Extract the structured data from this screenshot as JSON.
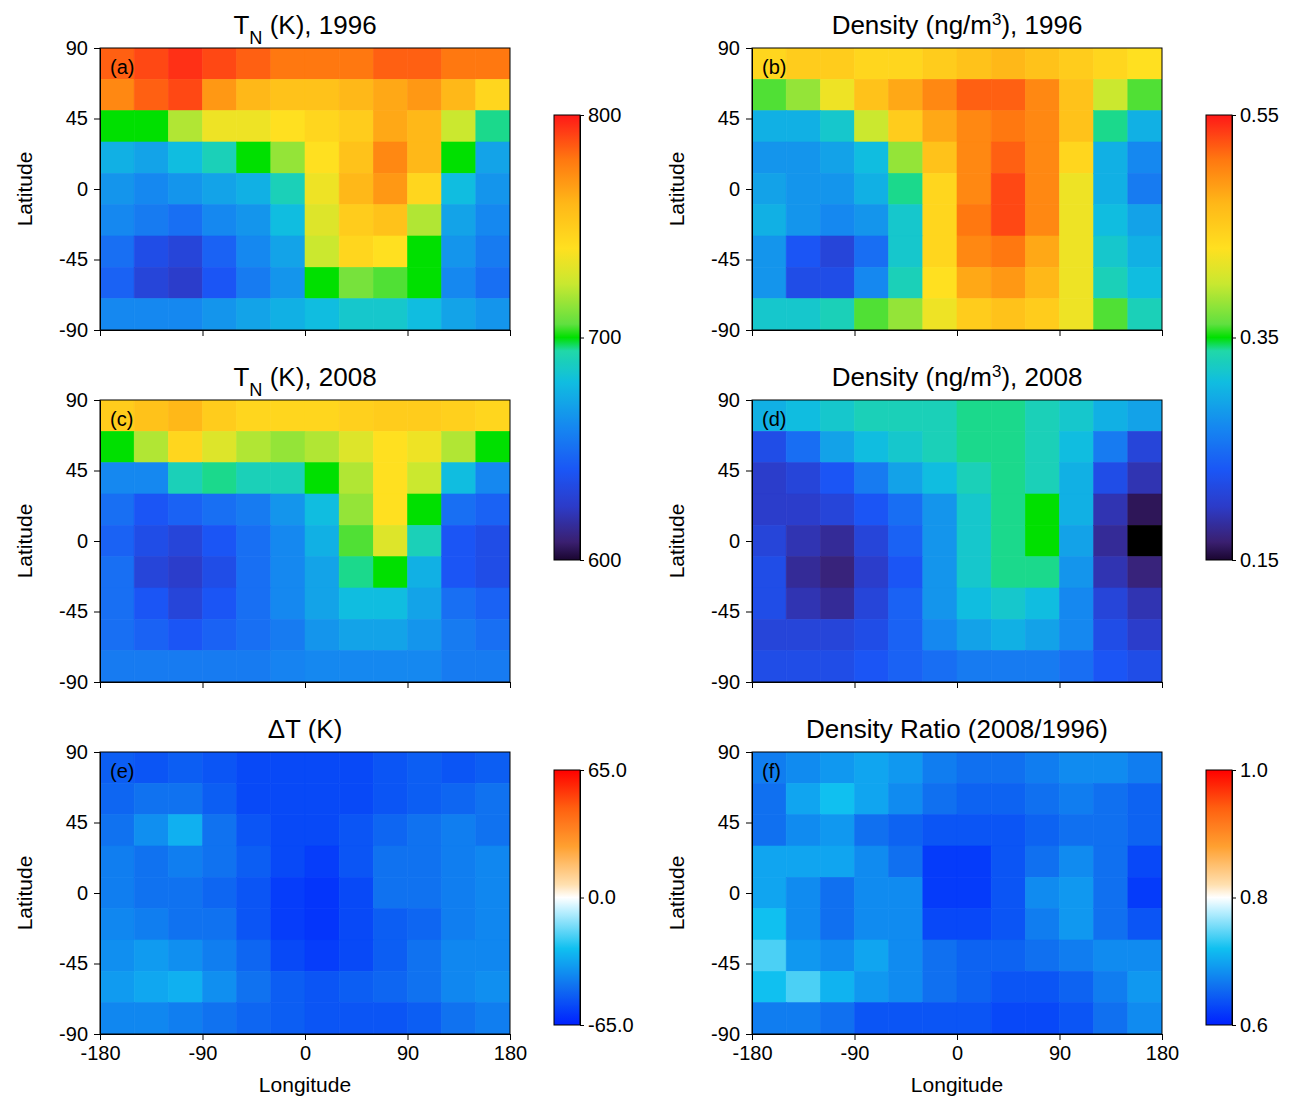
{
  "chart_data": [
    {
      "type": "heatmap",
      "title": "TN (K), 1996",
      "annotation": "(a)",
      "ylabel": "Latitude",
      "color": "rainbow",
      "tick_labels": "y",
      "x": [
        -165,
        -135,
        -105,
        -75,
        -45,
        -15,
        15,
        45,
        75,
        105,
        135,
        165
      ],
      "y": [
        80,
        60,
        40,
        20,
        0,
        -20,
        -40,
        -60,
        -80
      ],
      "xlim": [
        -180,
        180
      ],
      "xticks": [
        -180,
        -90,
        0,
        90,
        180
      ],
      "ylim": [
        -90,
        90
      ],
      "yticks": [
        -90,
        -45,
        0,
        45,
        90
      ],
      "colorbar": {
        "range": [
          600,
          800
        ],
        "ticks": [
          600,
          700,
          800
        ]
      },
      "z": [
        [
          785,
          790,
          795,
          790,
          785,
          780,
          780,
          780,
          785,
          785,
          780,
          780
        ],
        [
          775,
          785,
          790,
          770,
          760,
          755,
          755,
          760,
          765,
          770,
          760,
          745
        ],
        [
          700,
          700,
          720,
          735,
          735,
          740,
          745,
          750,
          765,
          760,
          725,
          695
        ],
        [
          675,
          670,
          680,
          690,
          700,
          715,
          740,
          755,
          775,
          760,
          700,
          670
        ],
        [
          665,
          660,
          665,
          670,
          675,
          690,
          735,
          760,
          770,
          745,
          680,
          665
        ],
        [
          660,
          655,
          650,
          660,
          665,
          680,
          730,
          750,
          755,
          720,
          670,
          660
        ],
        [
          650,
          635,
          630,
          645,
          660,
          670,
          725,
          745,
          740,
          700,
          665,
          655
        ],
        [
          645,
          630,
          625,
          640,
          655,
          665,
          700,
          710,
          705,
          700,
          660,
          650
        ],
        [
          660,
          660,
          660,
          665,
          670,
          675,
          680,
          685,
          685,
          680,
          670,
          665
        ]
      ]
    },
    {
      "type": "heatmap",
      "title": "Density (ng/m3), 1996",
      "annotation": "(b)",
      "ylabel": "Latitude",
      "color": "rainbow",
      "tick_labels": "y",
      "x": [
        -165,
        -135,
        -105,
        -75,
        -45,
        -15,
        15,
        45,
        75,
        105,
        135,
        165
      ],
      "y": [
        80,
        60,
        40,
        20,
        0,
        -20,
        -40,
        -60,
        -80
      ],
      "xlim": [
        -180,
        180
      ],
      "xticks": [
        -180,
        -90,
        0,
        90,
        180
      ],
      "ylim": [
        -90,
        90
      ],
      "yticks": [
        -90,
        -45,
        0,
        45,
        90
      ],
      "colorbar": {
        "range": [
          0.15,
          0.55
        ],
        "ticks": [
          0.15,
          0.35,
          0.55
        ]
      },
      "z": [
        [
          0.44,
          0.45,
          0.45,
          0.44,
          0.44,
          0.45,
          0.46,
          0.47,
          0.46,
          0.45,
          0.44,
          0.43
        ],
        [
          0.36,
          0.38,
          0.42,
          0.46,
          0.48,
          0.5,
          0.52,
          0.52,
          0.5,
          0.46,
          0.4,
          0.36
        ],
        [
          0.3,
          0.3,
          0.32,
          0.4,
          0.45,
          0.48,
          0.5,
          0.51,
          0.5,
          0.46,
          0.34,
          0.3
        ],
        [
          0.28,
          0.28,
          0.29,
          0.31,
          0.38,
          0.46,
          0.5,
          0.52,
          0.5,
          0.44,
          0.3,
          0.27
        ],
        [
          0.29,
          0.28,
          0.28,
          0.3,
          0.34,
          0.44,
          0.5,
          0.53,
          0.5,
          0.42,
          0.3,
          0.26
        ],
        [
          0.3,
          0.28,
          0.27,
          0.28,
          0.32,
          0.44,
          0.51,
          0.53,
          0.5,
          0.42,
          0.31,
          0.29
        ],
        [
          0.28,
          0.23,
          0.21,
          0.25,
          0.32,
          0.44,
          0.5,
          0.51,
          0.48,
          0.42,
          0.32,
          0.3
        ],
        [
          0.28,
          0.22,
          0.22,
          0.27,
          0.33,
          0.43,
          0.48,
          0.49,
          0.47,
          0.42,
          0.33,
          0.31
        ],
        [
          0.32,
          0.32,
          0.33,
          0.36,
          0.38,
          0.42,
          0.45,
          0.46,
          0.45,
          0.42,
          0.36,
          0.33
        ]
      ]
    },
    {
      "type": "heatmap",
      "title": "TN (K), 2008",
      "annotation": "(c)",
      "ylabel": "Latitude",
      "color": "rainbow",
      "tick_labels": "y",
      "x": [
        -165,
        -135,
        -105,
        -75,
        -45,
        -15,
        15,
        45,
        75,
        105,
        135,
        165
      ],
      "y": [
        80,
        60,
        40,
        20,
        0,
        -20,
        -40,
        -60,
        -80
      ],
      "xlim": [
        -180,
        180
      ],
      "xticks": [
        -180,
        -90,
        0,
        90,
        180
      ],
      "ylim": [
        -90,
        90
      ],
      "yticks": [
        -90,
        -45,
        0,
        45,
        90
      ],
      "colorbar": {
        "range": [
          600,
          800
        ]
      },
      "z": [
        [
          750,
          755,
          760,
          750,
          745,
          745,
          745,
          748,
          750,
          750,
          748,
          745
        ],
        [
          700,
          720,
          745,
          730,
          720,
          715,
          720,
          730,
          740,
          735,
          720,
          700
        ],
        [
          660,
          660,
          690,
          695,
          690,
          690,
          700,
          720,
          740,
          725,
          680,
          660
        ],
        [
          650,
          640,
          645,
          650,
          655,
          665,
          680,
          715,
          740,
          700,
          650,
          645
        ],
        [
          645,
          635,
          630,
          640,
          650,
          660,
          675,
          705,
          730,
          690,
          640,
          635
        ],
        [
          650,
          630,
          625,
          635,
          650,
          660,
          670,
          695,
          700,
          675,
          640,
          635
        ],
        [
          650,
          640,
          630,
          640,
          650,
          660,
          670,
          680,
          680,
          670,
          650,
          645
        ],
        [
          650,
          645,
          640,
          645,
          650,
          655,
          665,
          670,
          670,
          665,
          655,
          650
        ],
        [
          655,
          655,
          655,
          655,
          655,
          658,
          660,
          660,
          660,
          660,
          655,
          655
        ]
      ]
    },
    {
      "type": "heatmap",
      "title": "Density (ng/m3), 2008",
      "annotation": "(d)",
      "ylabel": "Latitude",
      "color": "rainbow",
      "tick_labels": "y",
      "x": [
        -165,
        -135,
        -105,
        -75,
        -45,
        -15,
        15,
        45,
        75,
        105,
        135,
        165
      ],
      "y": [
        80,
        60,
        40,
        20,
        0,
        -20,
        -40,
        -60,
        -80
      ],
      "xlim": [
        -180,
        180
      ],
      "xticks": [
        -180,
        -90,
        0,
        90,
        180
      ],
      "ylim": [
        -90,
        90
      ],
      "yticks": [
        -90,
        -45,
        0,
        45,
        90
      ],
      "colorbar": {
        "range": [
          0.15,
          0.55
        ]
      },
      "z": [
        [
          0.3,
          0.31,
          0.32,
          0.33,
          0.33,
          0.33,
          0.34,
          0.34,
          0.33,
          0.32,
          0.3,
          0.29
        ],
        [
          0.22,
          0.25,
          0.29,
          0.31,
          0.32,
          0.33,
          0.34,
          0.34,
          0.33,
          0.31,
          0.26,
          0.21
        ],
        [
          0.2,
          0.21,
          0.23,
          0.26,
          0.29,
          0.31,
          0.33,
          0.34,
          0.33,
          0.3,
          0.22,
          0.19
        ],
        [
          0.2,
          0.2,
          0.21,
          0.23,
          0.25,
          0.28,
          0.32,
          0.34,
          0.35,
          0.3,
          0.19,
          0.16
        ],
        [
          0.21,
          0.19,
          0.18,
          0.21,
          0.24,
          0.28,
          0.32,
          0.34,
          0.35,
          0.29,
          0.18,
          0.14
        ],
        [
          0.22,
          0.18,
          0.17,
          0.2,
          0.23,
          0.28,
          0.32,
          0.34,
          0.34,
          0.28,
          0.19,
          0.17
        ],
        [
          0.22,
          0.19,
          0.18,
          0.21,
          0.24,
          0.28,
          0.31,
          0.32,
          0.31,
          0.27,
          0.21,
          0.19
        ],
        [
          0.21,
          0.21,
          0.21,
          0.22,
          0.24,
          0.27,
          0.29,
          0.3,
          0.29,
          0.27,
          0.22,
          0.2
        ],
        [
          0.22,
          0.22,
          0.22,
          0.23,
          0.24,
          0.25,
          0.26,
          0.26,
          0.26,
          0.25,
          0.23,
          0.22
        ]
      ]
    },
    {
      "type": "heatmap",
      "title": "ΔT (K)",
      "annotation": "(e)",
      "ylabel": "Latitude",
      "xlabel": "Longitude",
      "color": "diverging",
      "x": [
        -165,
        -135,
        -105,
        -75,
        -45,
        -15,
        15,
        45,
        75,
        105,
        135,
        165
      ],
      "y": [
        80,
        60,
        40,
        20,
        0,
        -20,
        -40,
        -60,
        -80
      ],
      "xlim": [
        -180,
        180
      ],
      "xticks": [
        -180,
        -90,
        0,
        90,
        180
      ],
      "ylim": [
        -90,
        90
      ],
      "yticks": [
        -90,
        -45,
        0,
        45,
        90
      ],
      "colorbar": {
        "range": [
          -65,
          65
        ],
        "ticks": [
          {
            "value": -65,
            "label": "-65.0"
          },
          {
            "value": 0,
            "label": "0.0"
          },
          {
            "value": 65,
            "label": "65.0"
          }
        ]
      },
      "z": [
        [
          -50,
          -52,
          -50,
          -52,
          -55,
          -55,
          -55,
          -55,
          -52,
          -50,
          -52,
          -50
        ],
        [
          -48,
          -45,
          -45,
          -50,
          -55,
          -55,
          -55,
          -55,
          -52,
          -50,
          -48,
          -45
        ],
        [
          -45,
          -38,
          -30,
          -45,
          -52,
          -55,
          -55,
          -52,
          -48,
          -45,
          -42,
          -45
        ],
        [
          -42,
          -45,
          -42,
          -45,
          -50,
          -55,
          -58,
          -52,
          -45,
          -45,
          -42,
          -40
        ],
        [
          -42,
          -45,
          -45,
          -48,
          -52,
          -58,
          -60,
          -55,
          -45,
          -45,
          -42,
          -40
        ],
        [
          -40,
          -42,
          -45,
          -45,
          -52,
          -58,
          -60,
          -55,
          -50,
          -48,
          -42,
          -40
        ],
        [
          -38,
          -35,
          -38,
          -42,
          -48,
          -55,
          -58,
          -55,
          -50,
          -45,
          -40,
          -40
        ],
        [
          -35,
          -32,
          -30,
          -38,
          -45,
          -50,
          -52,
          -50,
          -48,
          -45,
          -40,
          -38
        ],
        [
          -40,
          -40,
          -42,
          -45,
          -48,
          -50,
          -52,
          -52,
          -52,
          -50,
          -45,
          -42
        ]
      ]
    },
    {
      "type": "heatmap",
      "title": "Density Ratio (2008/1996)",
      "annotation": "(f)",
      "ylabel": "Latitude",
      "xlabel": "Longitude",
      "color": "diverging",
      "x": [
        -165,
        -135,
        -105,
        -75,
        -45,
        -15,
        15,
        45,
        75,
        105,
        135,
        165
      ],
      "y": [
        80,
        60,
        40,
        20,
        0,
        -20,
        -40,
        -60,
        -80
      ],
      "xlim": [
        -180,
        180
      ],
      "xticks": [
        -180,
        -90,
        0,
        90,
        180
      ],
      "ylim": [
        -90,
        90
      ],
      "yticks": [
        -90,
        -45,
        0,
        45,
        90
      ],
      "colorbar": {
        "range": [
          0.6,
          1.0
        ],
        "ticks": [
          0.6,
          0.8,
          {
            "value": 1.0,
            "label": "1.0"
          }
        ]
      },
      "z": [
        [
          0.67,
          0.68,
          0.69,
          0.7,
          0.69,
          0.67,
          0.66,
          0.66,
          0.67,
          0.68,
          0.68,
          0.67
        ],
        [
          0.66,
          0.7,
          0.72,
          0.7,
          0.68,
          0.66,
          0.65,
          0.65,
          0.66,
          0.67,
          0.66,
          0.65
        ],
        [
          0.66,
          0.68,
          0.69,
          0.66,
          0.65,
          0.64,
          0.64,
          0.64,
          0.65,
          0.66,
          0.66,
          0.65
        ],
        [
          0.7,
          0.7,
          0.7,
          0.68,
          0.66,
          0.62,
          0.62,
          0.64,
          0.66,
          0.68,
          0.66,
          0.63
        ],
        [
          0.7,
          0.68,
          0.66,
          0.68,
          0.68,
          0.62,
          0.62,
          0.64,
          0.68,
          0.69,
          0.66,
          0.62
        ],
        [
          0.72,
          0.68,
          0.66,
          0.68,
          0.68,
          0.63,
          0.63,
          0.64,
          0.67,
          0.69,
          0.66,
          0.64
        ],
        [
          0.74,
          0.69,
          0.68,
          0.7,
          0.68,
          0.66,
          0.65,
          0.65,
          0.66,
          0.67,
          0.68,
          0.68
        ],
        [
          0.72,
          0.74,
          0.71,
          0.69,
          0.68,
          0.66,
          0.65,
          0.64,
          0.64,
          0.65,
          0.67,
          0.69
        ],
        [
          0.67,
          0.67,
          0.66,
          0.64,
          0.64,
          0.64,
          0.64,
          0.63,
          0.63,
          0.64,
          0.66,
          0.68
        ]
      ]
    }
  ]
}
